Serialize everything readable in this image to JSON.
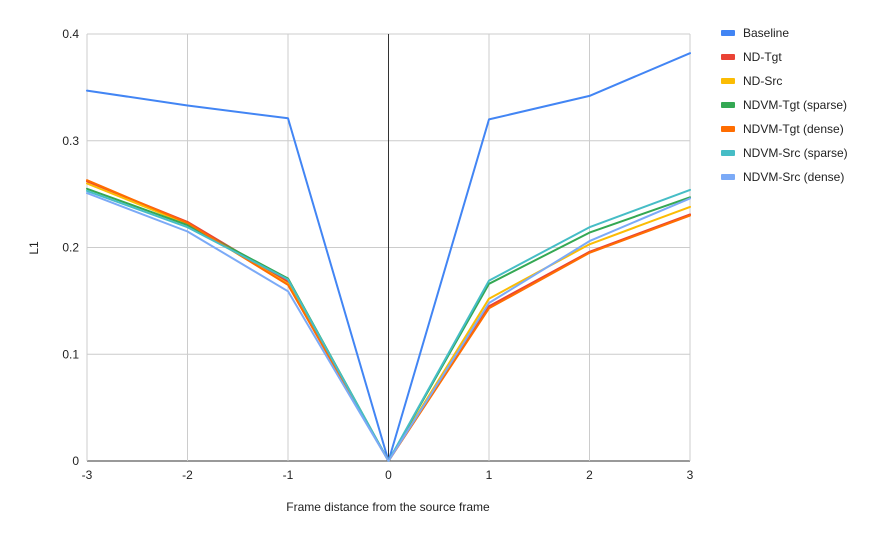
{
  "chart_data": {
    "type": "line",
    "title": "",
    "xlabel": "Frame distance from the source frame",
    "ylabel": "L1",
    "x": [
      -3,
      -2,
      -1,
      0,
      1,
      2,
      3
    ],
    "xticks": [
      "-3",
      "-2",
      "-1",
      "0",
      "1",
      "2",
      "3"
    ],
    "yticks": [
      "0",
      "0.1",
      "0.2",
      "0.3",
      "0.4"
    ],
    "xlim": [
      -3,
      3
    ],
    "ylim": [
      0,
      0.4
    ],
    "grid": true,
    "legend_position": "right",
    "series": [
      {
        "name": "Baseline",
        "color": "#4285f4",
        "values": [
          0.347,
          0.333,
          0.321,
          0.0,
          0.32,
          0.342,
          0.382
        ]
      },
      {
        "name": "ND-Tgt",
        "color": "#ea4335",
        "values": [
          0.262,
          0.224,
          0.168,
          0.0,
          0.145,
          0.196,
          0.231
        ]
      },
      {
        "name": "ND-Src",
        "color": "#fbbc04",
        "values": [
          0.26,
          0.222,
          0.166,
          0.0,
          0.152,
          0.203,
          0.238
        ]
      },
      {
        "name": "NDVM-Tgt (sparse)",
        "color": "#34a853",
        "values": [
          0.255,
          0.221,
          0.171,
          0.0,
          0.166,
          0.214,
          0.247
        ]
      },
      {
        "name": "NDVM-Tgt (dense)",
        "color": "#ff6d01",
        "values": [
          0.263,
          0.223,
          0.165,
          0.0,
          0.143,
          0.195,
          0.23
        ]
      },
      {
        "name": "NDVM-Src (sparse)",
        "color": "#46bdc6",
        "values": [
          0.253,
          0.219,
          0.17,
          0.0,
          0.169,
          0.219,
          0.254
        ]
      },
      {
        "name": "NDVM-Src (dense)",
        "color": "#7baaf7",
        "values": [
          0.251,
          0.215,
          0.159,
          0.0,
          0.148,
          0.206,
          0.246
        ]
      }
    ]
  }
}
